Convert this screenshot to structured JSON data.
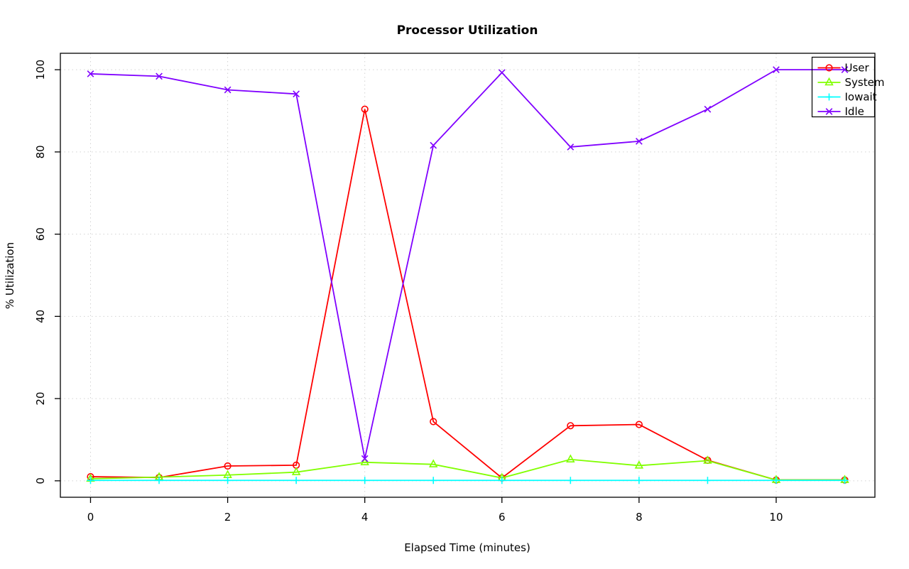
{
  "chart_data": {
    "type": "line",
    "title": "Processor Utilization",
    "xlabel": "Elapsed Time (minutes)",
    "ylabel": "% Utilization",
    "x": [
      0,
      1,
      2,
      3,
      4,
      5,
      6,
      7,
      8,
      9,
      10,
      11
    ],
    "xlim": [
      0,
      11
    ],
    "ylim": [
      0,
      100
    ],
    "xticks": [
      0,
      2,
      4,
      6,
      8,
      10
    ],
    "yticks": [
      0,
      20,
      40,
      60,
      80,
      100
    ],
    "grid": "dotted",
    "grid_color": "#d3d3d3",
    "legend_position": "top-right",
    "series": [
      {
        "name": "User",
        "color": "#ff0000",
        "marker": "circle",
        "values": [
          1,
          0.8,
          3.6,
          3.8,
          90.4,
          14.4,
          0.7,
          13.4,
          13.7,
          5,
          0.2,
          0.2
        ]
      },
      {
        "name": "System",
        "color": "#80ff00",
        "marker": "triangle",
        "values": [
          0.5,
          0.9,
          1.4,
          2.1,
          4.5,
          4,
          0.7,
          5.2,
          3.7,
          4.9,
          0.2,
          0.2
        ]
      },
      {
        "name": "Iowait",
        "color": "#00ffff",
        "marker": "plus",
        "values": [
          0.1,
          0.1,
          0.1,
          0.1,
          0.1,
          0.1,
          0.1,
          0.1,
          0.1,
          0.1,
          0.1,
          0.1
        ]
      },
      {
        "name": "Idle",
        "color": "#8000ff",
        "marker": "x",
        "values": [
          99,
          98.4,
          95.1,
          94.1,
          5.4,
          81.6,
          99.3,
          81.2,
          82.6,
          90.4,
          100,
          100
        ]
      }
    ]
  }
}
